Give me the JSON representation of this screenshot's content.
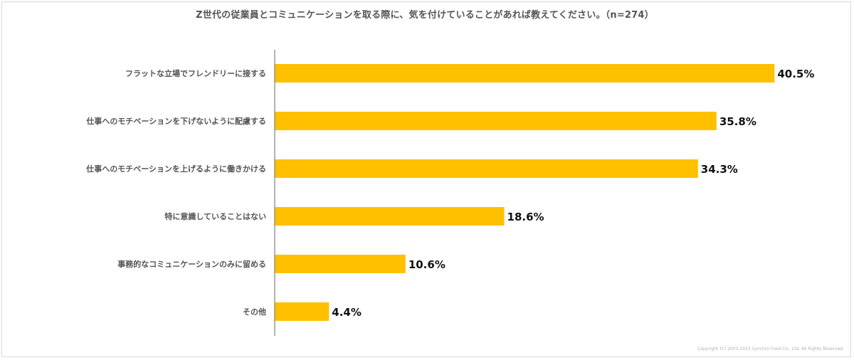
{
  "chart_data": {
    "type": "bar",
    "orientation": "horizontal",
    "title": "Z世代の従業員とコミュニケーションを取る際に、気を付けていることがあれば教えてください。（n=274）",
    "categories": [
      "フラットな立場でフレンドリーに接する",
      "仕事へのモチベーションを下げないように配慮する",
      "仕事へのモチベーションを上げるように働きかける",
      "特に意識していることはない",
      "事務的なコミュニケーションのみに留める",
      "その他"
    ],
    "values": [
      40.5,
      35.8,
      34.3,
      18.6,
      10.6,
      4.4
    ],
    "value_labels": [
      "40.5%",
      "35.8%",
      "34.3%",
      "18.6%",
      "10.6%",
      "4.4%"
    ],
    "xlim": [
      0,
      41
    ],
    "bar_color": "#FFC000",
    "axis_color": "#7f7f7f",
    "grid": false
  },
  "footer": {
    "copyright": "Copyright (C) 2003-2023 Synchro Food Co., Ltd. All Rights Reserved."
  }
}
